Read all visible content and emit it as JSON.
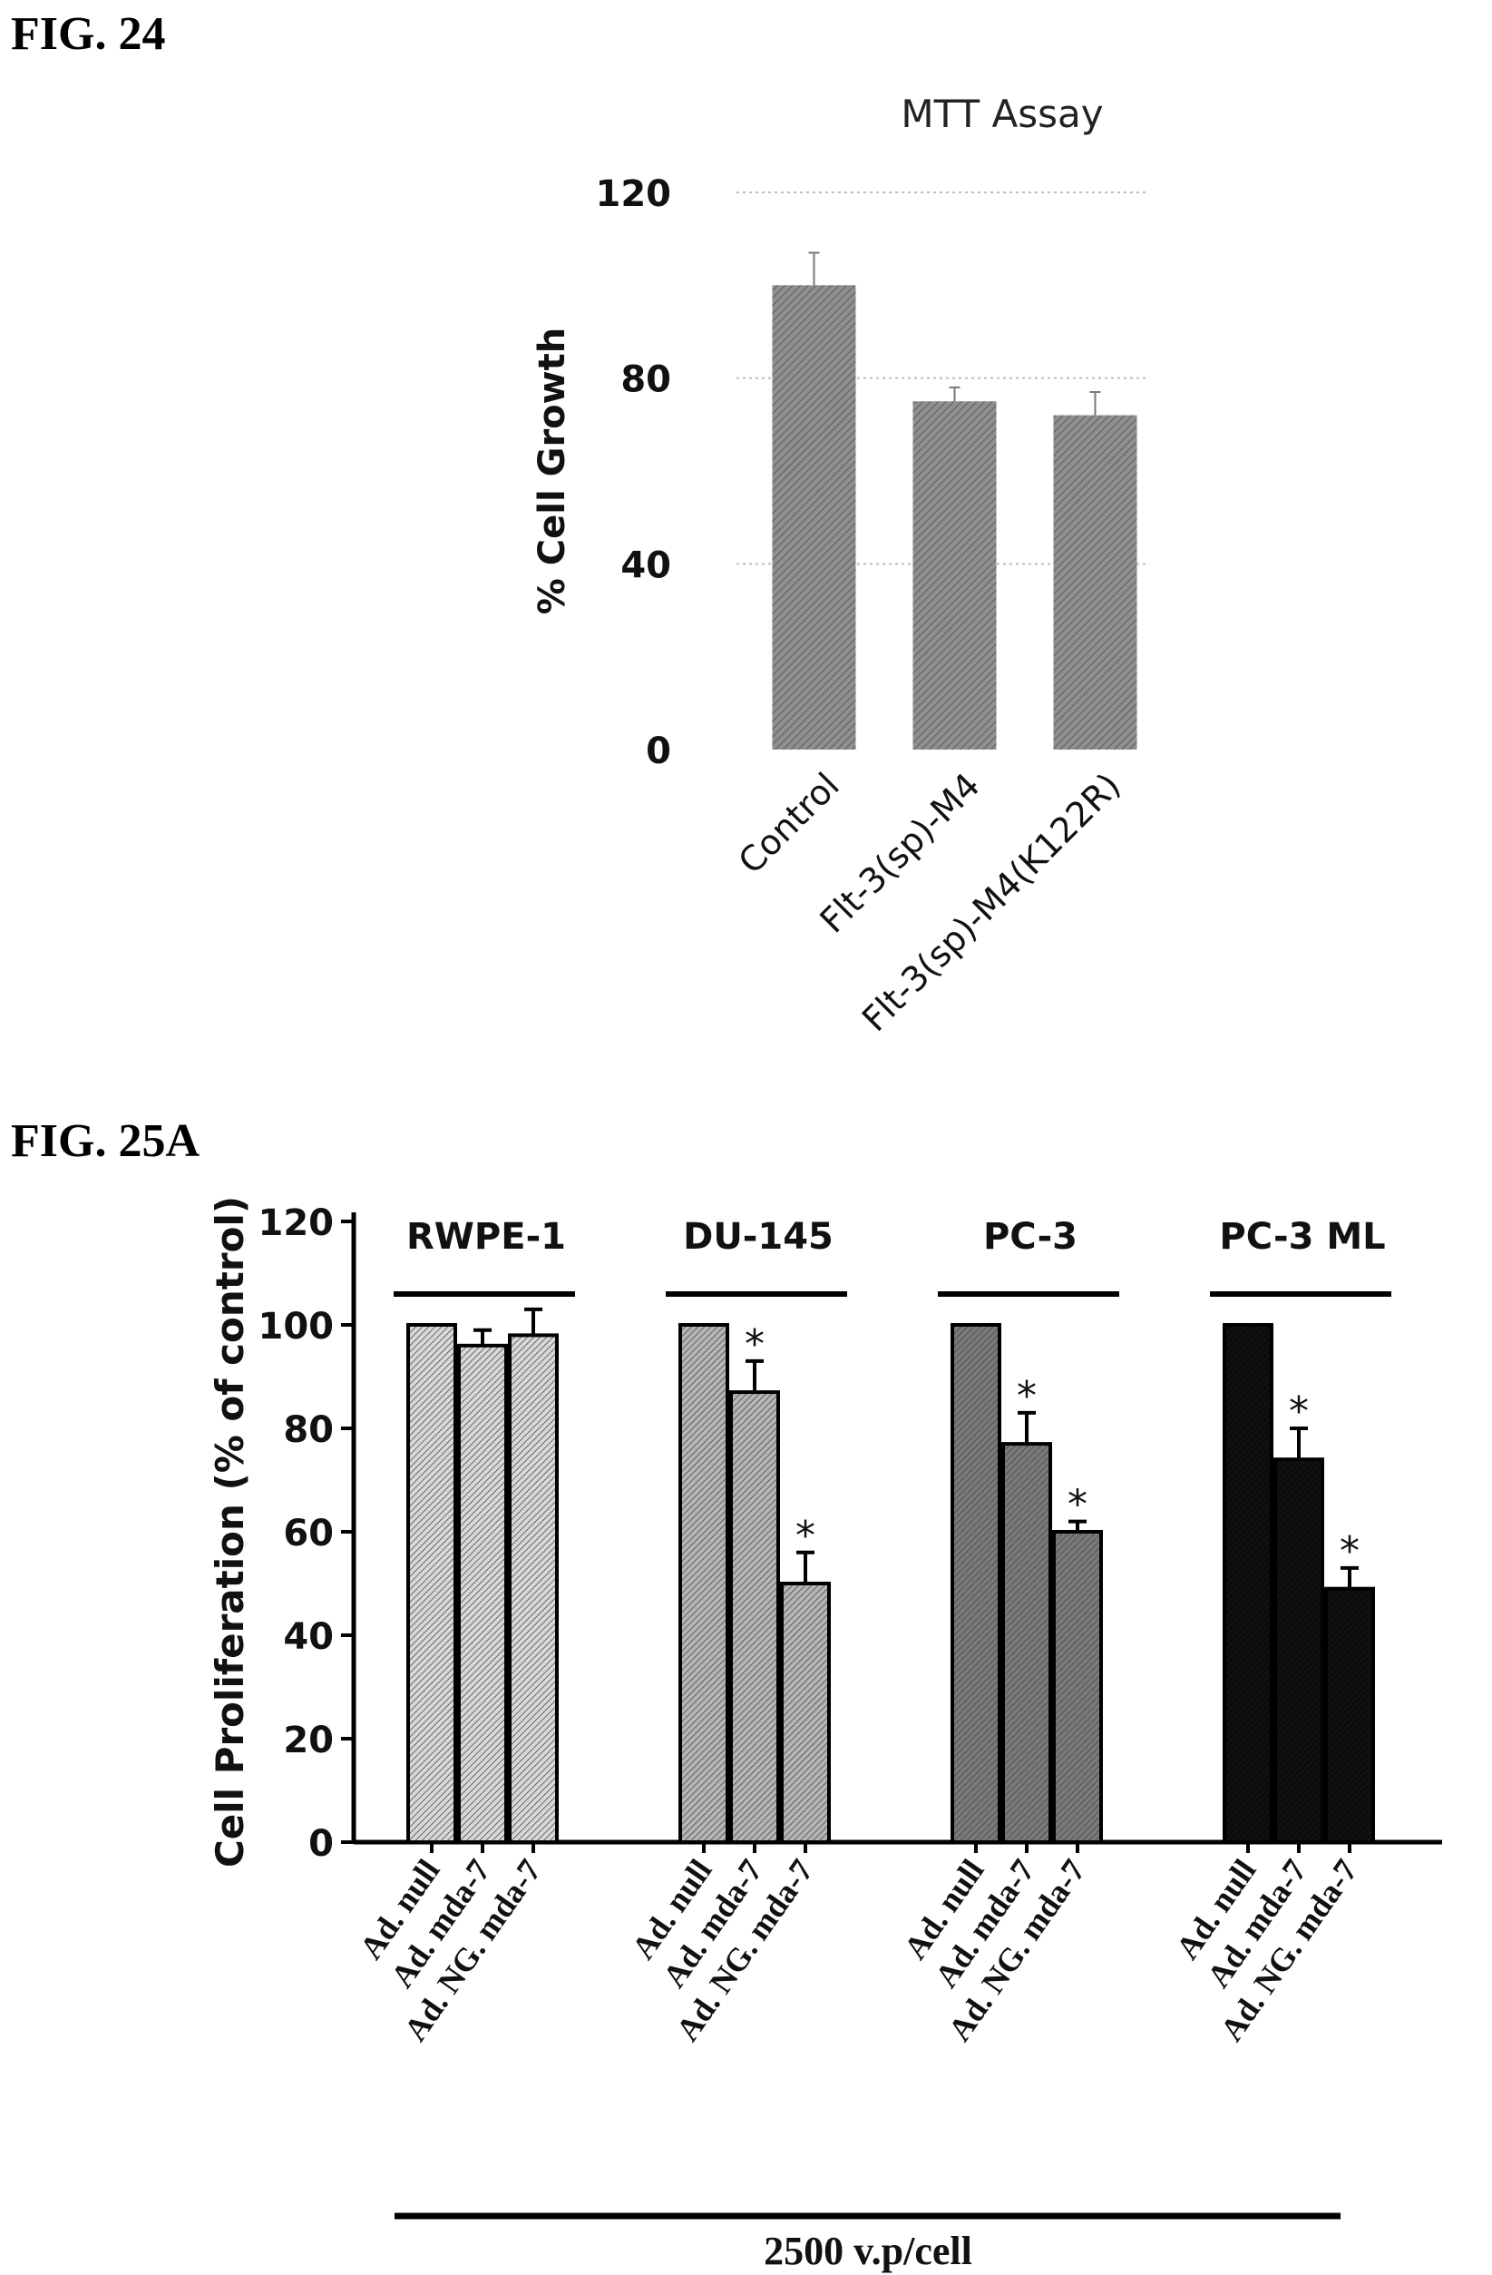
{
  "figures": {
    "fig24_label": "FIG. 24",
    "fig25a_label": "FIG. 25A"
  },
  "chart_data": [
    {
      "type": "bar",
      "title": "MTT Assay",
      "xlabel": "",
      "ylabel": "% Cell Growth",
      "ylim": [
        0,
        120
      ],
      "yticks": [
        "0",
        "40",
        "80",
        "120"
      ],
      "grid": true,
      "categories": [
        "Control",
        "Flt-3(sp)-M4",
        "Flt-3(sp)-M4(K122R)"
      ],
      "series": [
        {
          "values": [
            100,
            75,
            72
          ],
          "errors": [
            7,
            3,
            5
          ]
        }
      ],
      "colors": {
        "bar": "#8f8f8f",
        "grid": "#bdbdbd"
      }
    },
    {
      "type": "bar",
      "title": "",
      "xlabel": "2500 v.p/cell",
      "ylabel": "Cell Proliferation (% of control)",
      "ylim": [
        0,
        120
      ],
      "yticks": [
        "0",
        "20",
        "40",
        "60",
        "80",
        "100",
        "120"
      ],
      "grid": false,
      "groups": [
        {
          "name": "RWPE-1",
          "categories": [
            "Ad. null",
            "Ad. mda-7",
            "Ad. NG. mda-7"
          ],
          "values": [
            100,
            96,
            98
          ],
          "errors": [
            0,
            3,
            5
          ],
          "significance": [
            "",
            "",
            ""
          ],
          "color": "#d8d8d8"
        },
        {
          "name": "DU-145",
          "categories": [
            "Ad. null",
            "Ad. mda-7",
            "Ad. NG. mda-7"
          ],
          "values": [
            100,
            87,
            50
          ],
          "errors": [
            0,
            6,
            6
          ],
          "significance": [
            "",
            "*",
            "*"
          ],
          "color": "#b5b5b5"
        },
        {
          "name": "PC-3",
          "categories": [
            "Ad. null",
            "Ad. mda-7",
            "Ad. NG. mda-7"
          ],
          "values": [
            100,
            77,
            60
          ],
          "errors": [
            0,
            6,
            2
          ],
          "significance": [
            "",
            "*",
            "*"
          ],
          "color": "#7a7a7a"
        },
        {
          "name": "PC-3 ML",
          "categories": [
            "Ad. null",
            "Ad. mda-7",
            "Ad. NG. mda-7"
          ],
          "values": [
            100,
            74,
            49
          ],
          "errors": [
            0,
            6,
            4
          ],
          "significance": [
            "",
            "*",
            "*"
          ],
          "color": "#111111"
        }
      ]
    }
  ]
}
